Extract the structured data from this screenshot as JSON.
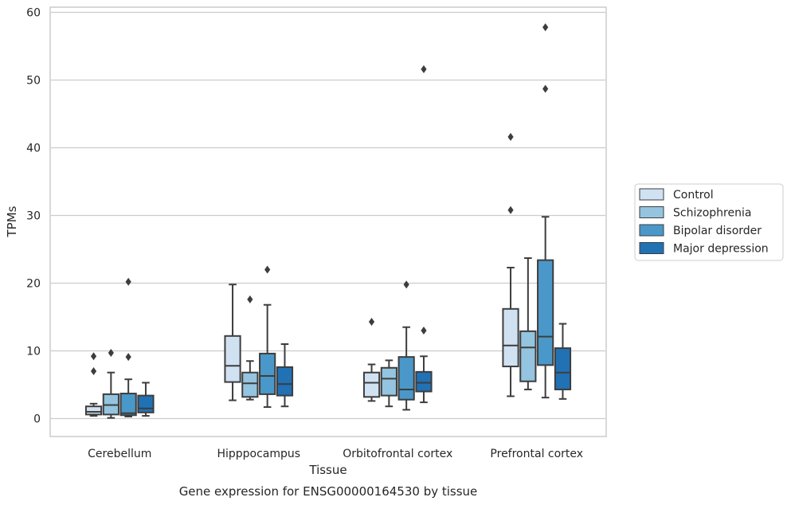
{
  "chart_data": {
    "type": "box",
    "caption": "Gene expression for ENSG00000164530 by tissue",
    "xlabel": "Tissue",
    "ylabel": "TPMs",
    "ylim": [
      -2.6,
      60.6
    ],
    "yticks": [
      0,
      10,
      20,
      30,
      40,
      50,
      60
    ],
    "grid": "horizontal",
    "legend_position": "right",
    "categories": [
      "Cerebellum",
      "Hipppocampus",
      "Orbitofrontal cortex",
      "Prefrontal cortex"
    ],
    "series": [
      {
        "name": "Control",
        "color": "#d0e1f2",
        "boxes": [
          {
            "whisker_low": 0.4,
            "q1": 0.6,
            "median": 1.0,
            "q3": 1.8,
            "whisker_high": 2.2,
            "outliers": [
              9.2,
              7.0
            ]
          },
          {
            "whisker_low": 2.7,
            "q1": 5.4,
            "median": 7.8,
            "q3": 12.2,
            "whisker_high": 19.8,
            "outliers": []
          },
          {
            "whisker_low": 2.6,
            "q1": 3.2,
            "median": 5.3,
            "q3": 6.8,
            "whisker_high": 8.0,
            "outliers": [
              14.3
            ]
          },
          {
            "whisker_low": 3.3,
            "q1": 7.7,
            "median": 10.8,
            "q3": 16.2,
            "whisker_high": 22.3,
            "outliers": [
              41.6,
              30.8
            ]
          }
        ]
      },
      {
        "name": "Schizophrenia",
        "color": "#94c4df",
        "boxes": [
          {
            "whisker_low": 0.1,
            "q1": 0.6,
            "median": 2.0,
            "q3": 3.6,
            "whisker_high": 6.8,
            "outliers": [
              9.7
            ]
          },
          {
            "whisker_low": 2.8,
            "q1": 3.2,
            "median": 5.2,
            "q3": 6.8,
            "whisker_high": 8.5,
            "outliers": [
              17.6
            ]
          },
          {
            "whisker_low": 1.8,
            "q1": 3.4,
            "median": 5.9,
            "q3": 7.5,
            "whisker_high": 8.6,
            "outliers": []
          },
          {
            "whisker_low": 4.3,
            "q1": 5.5,
            "median": 10.5,
            "q3": 12.9,
            "whisker_high": 23.7,
            "outliers": []
          }
        ]
      },
      {
        "name": "Bipolar disorder",
        "color": "#4a98c9",
        "boxes": [
          {
            "whisker_low": 0.3,
            "q1": 0.5,
            "median": 0.8,
            "q3": 3.7,
            "whisker_high": 5.8,
            "outliers": [
              20.2,
              9.1
            ]
          },
          {
            "whisker_low": 1.7,
            "q1": 3.6,
            "median": 6.3,
            "q3": 9.6,
            "whisker_high": 16.8,
            "outliers": [
              22.0
            ]
          },
          {
            "whisker_low": 1.3,
            "q1": 2.8,
            "median": 4.3,
            "q3": 9.1,
            "whisker_high": 13.5,
            "outliers": [
              19.8
            ]
          },
          {
            "whisker_low": 3.1,
            "q1": 7.9,
            "median": 12.1,
            "q3": 23.4,
            "whisker_high": 29.8,
            "outliers": [
              57.8,
              48.7
            ]
          }
        ]
      },
      {
        "name": "Major depression",
        "color": "#2171b5",
        "boxes": [
          {
            "whisker_low": 0.4,
            "q1": 0.9,
            "median": 1.5,
            "q3": 3.4,
            "whisker_high": 5.3,
            "outliers": []
          },
          {
            "whisker_low": 1.8,
            "q1": 3.4,
            "median": 5.1,
            "q3": 7.6,
            "whisker_high": 11.0,
            "outliers": []
          },
          {
            "whisker_low": 2.4,
            "q1": 4.0,
            "median": 5.3,
            "q3": 6.9,
            "whisker_high": 9.2,
            "outliers": [
              51.6,
              13.0
            ]
          },
          {
            "whisker_low": 2.9,
            "q1": 4.3,
            "median": 6.8,
            "q3": 10.4,
            "whisker_high": 14.0,
            "outliers": []
          }
        ]
      }
    ]
  }
}
